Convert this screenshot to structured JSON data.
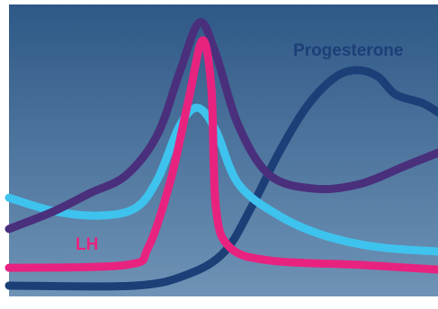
{
  "chart_data": {
    "type": "line",
    "xlim": [
      0,
      100
    ],
    "ylim": [
      0,
      100
    ],
    "series": [
      {
        "name": "Progesterone",
        "color": "#1c3f78",
        "x": [
          0,
          29.4,
          41.9,
          50.3,
          56.6,
          62.9,
          69.2,
          75.5,
          80.7,
          85.9,
          90.1,
          96.4,
          100
        ],
        "values": [
          3.7,
          3.7,
          7.7,
          15.4,
          30.8,
          49.2,
          64.6,
          74.5,
          77.5,
          75.4,
          69.2,
          66.2,
          63.1
        ]
      },
      {
        "color": "#3ec3ee",
        "x": [
          0,
          10.5,
          21,
          29.4,
          34.6,
          39.8,
          44,
          48.2,
          53.5,
          62.9,
          73.4,
          86,
          100
        ],
        "values": [
          33.8,
          29.2,
          27.7,
          30.2,
          40,
          58.5,
          64.6,
          56.9,
          38.5,
          27.7,
          20.9,
          16.9,
          15.4
        ]
      },
      {
        "color": "#4a2f7d",
        "x": [
          0,
          10.5,
          18.9,
          27.3,
          34.6,
          39.8,
          44.4,
          48.2,
          53.5,
          60.8,
          71.3,
          81.8,
          92.2,
          100
        ],
        "values": [
          23.1,
          29.2,
          35.4,
          41.5,
          55.4,
          76.9,
          93.8,
          83.1,
          58.5,
          41.5,
          36.9,
          38.5,
          44.6,
          49.2
        ]
      },
      {
        "name": "LH",
        "color": "#e8237f",
        "x": [
          0,
          27.3,
          32.5,
          37.7,
          41.9,
          45.1,
          47.2,
          48.2,
          51.4,
          60.8,
          81.8,
          100
        ],
        "values": [
          9.8,
          10.8,
          16.9,
          40,
          67.7,
          87.7,
          70.8,
          30.8,
          16.9,
          12.3,
          10.8,
          9.2
        ]
      }
    ]
  }
}
